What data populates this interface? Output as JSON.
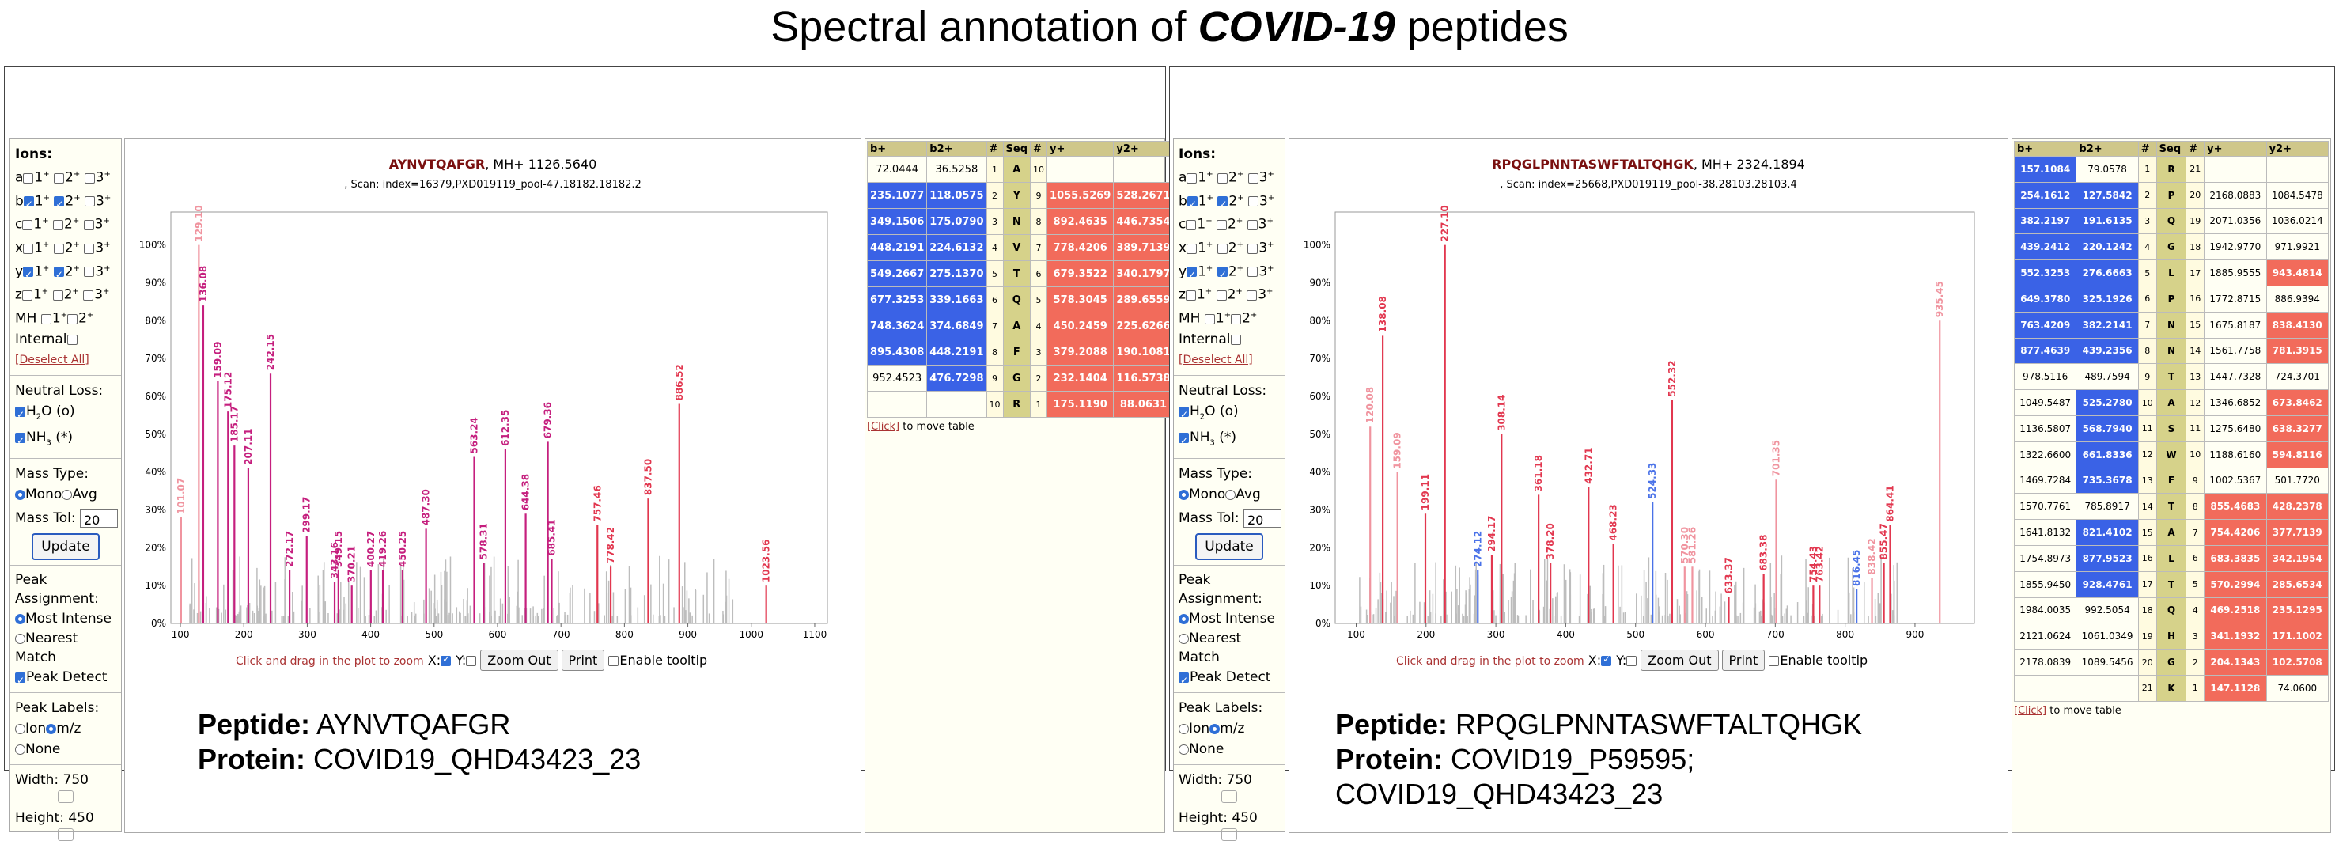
{
  "title": {
    "prefix": "Spectral annotation of ",
    "emph": "COVID-19",
    "suffix": " peptides"
  },
  "controls": {
    "ions_label": "Ions:",
    "ion_rows": [
      {
        "ion": "a",
        "c1": false,
        "c2": false,
        "c3": false
      },
      {
        "ion": "b",
        "c1": true,
        "c2": true,
        "c3": false
      },
      {
        "ion": "c",
        "c1": false,
        "c2": false,
        "c3": false
      },
      {
        "ion": "x",
        "c1": false,
        "c2": false,
        "c3": false
      },
      {
        "ion": "y",
        "c1": true,
        "c2": true,
        "c3": false
      },
      {
        "ion": "z",
        "c1": false,
        "c2": false,
        "c3": false
      }
    ],
    "charge1": "1",
    "charge2": "2",
    "charge3": "3",
    "plus": "+",
    "mh": "MH",
    "internal": "Internal",
    "deselect": "[Deselect All]",
    "neutral_loss": "Neutral Loss:",
    "h2o": "H",
    "h2o_sub": "2",
    "h2o_rest": "O (o)",
    "nh3": "NH",
    "nh3_sub": "3",
    "nh3_rest": " (*)",
    "mass_type": "Mass Type:",
    "mono": "Mono",
    "avg": "Avg",
    "mass_tol": "Mass Tol:",
    "mass_tol_value": "20",
    "update": "Update",
    "peak_assignment": "Peak Assignment:",
    "most_intense": "Most Intense",
    "nearest_match": "Nearest Match",
    "peak_detect": "Peak Detect",
    "peak_labels": "Peak Labels:",
    "ion": "Ion",
    "mz": "m/z",
    "none": "None",
    "width": "Width: 750",
    "height": "Height: 450"
  },
  "panels": [
    {
      "peptide": "AYNVTQAFGR",
      "mh": ", MH+ 1126.5640",
      "scan": ", Scan: index=16379,PXD019119_pool-47.18182.18182.2",
      "xticks": [
        "100",
        "200",
        "300",
        "400",
        "500",
        "600",
        "700",
        "800",
        "900",
        "1000",
        "1100"
      ],
      "yticks": [
        "100%",
        "90%",
        "80%",
        "70%",
        "60%",
        "50%",
        "40%",
        "30%",
        "20%",
        "10%",
        "0%"
      ],
      "toolbar": {
        "hint": "Click and drag in the plot to zoom",
        "x": "X:",
        "y": "Y:",
        "zoom": "Zoom Out",
        "print": "Print",
        "tooltip": "Enable tooltip"
      },
      "info": {
        "pep_label": "Peptide:",
        "pep": "AYNVTQAFGR",
        "prot_label": "Protein:",
        "prot": "COVID19_QHD43423_23"
      },
      "table": {
        "headers": [
          "b+",
          "b2+",
          "#",
          "Seq",
          "#",
          "y+",
          "y2+"
        ],
        "rows": [
          [
            "72.0444",
            "36.5258",
            "1",
            "A",
            "10",
            "",
            ""
          ],
          [
            "235.1077",
            "118.0575",
            "2",
            "Y",
            "9",
            "1055.5269",
            "528.2671"
          ],
          [
            "349.1506",
            "175.0790",
            "3",
            "N",
            "8",
            "892.4635",
            "446.7354"
          ],
          [
            "448.2191",
            "224.6132",
            "4",
            "V",
            "7",
            "778.4206",
            "389.7139"
          ],
          [
            "549.2667",
            "275.1370",
            "5",
            "T",
            "6",
            "679.3522",
            "340.1797"
          ],
          [
            "677.3253",
            "339.1663",
            "6",
            "Q",
            "5",
            "578.3045",
            "289.6559"
          ],
          [
            "748.3624",
            "374.6849",
            "7",
            "A",
            "4",
            "450.2459",
            "225.6266"
          ],
          [
            "895.4308",
            "448.2191",
            "8",
            "F",
            "3",
            "379.2088",
            "190.1081"
          ],
          [
            "952.4523",
            "476.7298",
            "9",
            "G",
            "2",
            "232.1404",
            "116.5738"
          ],
          [
            "",
            "",
            "10",
            "R",
            "1",
            "175.1190",
            "88.0631"
          ]
        ],
        "hits": [
          [
            0,
            0,
            0,
            0
          ],
          [
            1,
            1,
            1,
            1
          ],
          [
            1,
            1,
            1,
            1
          ],
          [
            1,
            1,
            1,
            1
          ],
          [
            1,
            1,
            1,
            1
          ],
          [
            1,
            1,
            1,
            1
          ],
          [
            1,
            1,
            1,
            1
          ],
          [
            1,
            1,
            1,
            1
          ],
          [
            0,
            1,
            1,
            1
          ],
          [
            0,
            0,
            1,
            1
          ]
        ],
        "click": "[Click]",
        "click_rest": " to move table"
      },
      "peaks": [
        {
          "mz": 101.07,
          "i": 28,
          "c": "s",
          "label": "101.07"
        },
        {
          "mz": 129.1,
          "i": 100,
          "c": "s",
          "label": "129.10"
        },
        {
          "mz": 136.08,
          "i": 84,
          "c": "b",
          "label": "136.08"
        },
        {
          "mz": 159.09,
          "i": 64,
          "c": "m",
          "label": "159.09"
        },
        {
          "mz": 175.12,
          "i": 56,
          "c": "m",
          "label": "175.12"
        },
        {
          "mz": 185.17,
          "i": 47,
          "c": "m",
          "label": "185.17"
        },
        {
          "mz": 207.11,
          "i": 41,
          "c": "m",
          "label": "207.11"
        },
        {
          "mz": 242.15,
          "i": 66,
          "c": "m",
          "label": "242.15"
        },
        {
          "mz": 272.17,
          "i": 14,
          "c": "m",
          "label": "272.17"
        },
        {
          "mz": 299.17,
          "i": 23,
          "c": "m",
          "label": "299.17"
        },
        {
          "mz": 343.16,
          "i": 11,
          "c": "m",
          "label": "343.16"
        },
        {
          "mz": 349.15,
          "i": 14,
          "c": "m",
          "label": "349.15"
        },
        {
          "mz": 370.21,
          "i": 10,
          "c": "m",
          "label": "370.21"
        },
        {
          "mz": 400.27,
          "i": 14,
          "c": "m",
          "label": "400.27"
        },
        {
          "mz": 419.26,
          "i": 14,
          "c": "m",
          "label": "419.26"
        },
        {
          "mz": 450.25,
          "i": 14,
          "c": "m",
          "label": "450.25"
        },
        {
          "mz": 487.3,
          "i": 25,
          "c": "m",
          "label": "487.30"
        },
        {
          "mz": 563.24,
          "i": 44,
          "c": "m",
          "label": "563.24"
        },
        {
          "mz": 578.31,
          "i": 16,
          "c": "m",
          "label": "578.31"
        },
        {
          "mz": 612.35,
          "i": 46,
          "c": "m",
          "label": "612.35"
        },
        {
          "mz": 644.38,
          "i": 29,
          "c": "m",
          "label": "644.38"
        },
        {
          "mz": 679.36,
          "i": 48,
          "c": "m",
          "label": "679.36"
        },
        {
          "mz": 685.41,
          "i": 17,
          "c": "m",
          "label": "685.41"
        },
        {
          "mz": 757.46,
          "i": 26,
          "c": "r",
          "label": "757.46"
        },
        {
          "mz": 778.42,
          "i": 15,
          "c": "r",
          "label": "778.42"
        },
        {
          "mz": 837.5,
          "i": 33,
          "c": "r",
          "label": "837.50"
        },
        {
          "mz": 886.52,
          "i": 58,
          "c": "r",
          "label": "886.52"
        },
        {
          "mz": 1023.56,
          "i": 10,
          "c": "r",
          "label": "1023.56"
        }
      ],
      "xrange": [
        85,
        1120
      ]
    },
    {
      "peptide": "RPQGLPNNTASWFTALTQHGK",
      "mh": ", MH+ 2324.1894",
      "scan": ", Scan: index=25668,PXD019119_pool-38.28103.28103.4",
      "xticks": [
        "100",
        "200",
        "300",
        "400",
        "500",
        "600",
        "700",
        "800",
        "900"
      ],
      "yticks": [
        "100%",
        "90%",
        "80%",
        "70%",
        "60%",
        "50%",
        "40%",
        "30%",
        "20%",
        "10%",
        "0%"
      ],
      "toolbar": {
        "hint": "Click and drag in the plot to zoom",
        "x": "X:",
        "y": "Y:",
        "zoom": "Zoom Out",
        "print": "Print",
        "tooltip": "Enable tooltip"
      },
      "info": {
        "pep_label": "Peptide:",
        "pep": "RPQGLPNNTASWFTALTQHGK",
        "prot_label": "Protein:",
        "prot": "COVID19_P59595; COVID19_QHD43423_23"
      },
      "table": {
        "headers": [
          "b+",
          "b2+",
          "#",
          "Seq",
          "#",
          "y+",
          "y2+"
        ],
        "rows": [
          [
            "157.1084",
            "79.0578",
            "1",
            "R",
            "21",
            "",
            ""
          ],
          [
            "254.1612",
            "127.5842",
            "2",
            "P",
            "20",
            "2168.0883",
            "1084.5478"
          ],
          [
            "382.2197",
            "191.6135",
            "3",
            "Q",
            "19",
            "2071.0356",
            "1036.0214"
          ],
          [
            "439.2412",
            "220.1242",
            "4",
            "G",
            "18",
            "1942.9770",
            "971.9921"
          ],
          [
            "552.3253",
            "276.6663",
            "5",
            "L",
            "17",
            "1885.9555",
            "943.4814"
          ],
          [
            "649.3780",
            "325.1926",
            "6",
            "P",
            "16",
            "1772.8715",
            "886.9394"
          ],
          [
            "763.4209",
            "382.2141",
            "7",
            "N",
            "15",
            "1675.8187",
            "838.4130"
          ],
          [
            "877.4639",
            "439.2356",
            "8",
            "N",
            "14",
            "1561.7758",
            "781.3915"
          ],
          [
            "978.5116",
            "489.7594",
            "9",
            "T",
            "13",
            "1447.7328",
            "724.3701"
          ],
          [
            "1049.5487",
            "525.2780",
            "10",
            "A",
            "12",
            "1346.6852",
            "673.8462"
          ],
          [
            "1136.5807",
            "568.7940",
            "11",
            "S",
            "11",
            "1275.6480",
            "638.3277"
          ],
          [
            "1322.6600",
            "661.8336",
            "12",
            "W",
            "10",
            "1188.6160",
            "594.8116"
          ],
          [
            "1469.7284",
            "735.3678",
            "13",
            "F",
            "9",
            "1002.5367",
            "501.7720"
          ],
          [
            "1570.7761",
            "785.8917",
            "14",
            "T",
            "8",
            "855.4683",
            "428.2378"
          ],
          [
            "1641.8132",
            "821.4102",
            "15",
            "A",
            "7",
            "754.4206",
            "377.7139"
          ],
          [
            "1754.8973",
            "877.9523",
            "16",
            "L",
            "6",
            "683.3835",
            "342.1954"
          ],
          [
            "1855.9450",
            "928.4761",
            "17",
            "T",
            "5",
            "570.2994",
            "285.6534"
          ],
          [
            "1984.0035",
            "992.5054",
            "18",
            "Q",
            "4",
            "469.2518",
            "235.1295"
          ],
          [
            "2121.0624",
            "1061.0349",
            "19",
            "H",
            "3",
            "341.1932",
            "171.1002"
          ],
          [
            "2178.0839",
            "1089.5456",
            "20",
            "G",
            "2",
            "204.1343",
            "102.5708"
          ],
          [
            "",
            "",
            "21",
            "K",
            "1",
            "147.1128",
            "74.0600"
          ]
        ],
        "hits": [
          [
            1,
            0,
            0,
            0
          ],
          [
            1,
            1,
            0,
            0
          ],
          [
            1,
            1,
            0,
            0
          ],
          [
            1,
            1,
            0,
            0
          ],
          [
            1,
            1,
            0,
            1
          ],
          [
            1,
            1,
            0,
            0
          ],
          [
            1,
            1,
            0,
            1
          ],
          [
            1,
            1,
            0,
            1
          ],
          [
            0,
            0,
            0,
            0
          ],
          [
            0,
            1,
            0,
            1
          ],
          [
            0,
            1,
            0,
            1
          ],
          [
            0,
            1,
            0,
            1
          ],
          [
            0,
            1,
            0,
            0
          ],
          [
            0,
            0,
            1,
            1
          ],
          [
            0,
            1,
            1,
            1
          ],
          [
            0,
            1,
            1,
            1
          ],
          [
            0,
            1,
            1,
            1
          ],
          [
            0,
            0,
            1,
            1
          ],
          [
            0,
            0,
            1,
            1
          ],
          [
            0,
            0,
            1,
            1
          ],
          [
            0,
            0,
            1,
            0
          ]
        ],
        "click": "[Click]",
        "click_rest": " to move table"
      },
      "peaks": [
        {
          "mz": 120.08,
          "i": 52,
          "c": "s",
          "label": "120.08"
        },
        {
          "mz": 138.08,
          "i": 76,
          "c": "r",
          "label": "138.08"
        },
        {
          "mz": 159.09,
          "i": 40,
          "c": "s",
          "label": "159.09"
        },
        {
          "mz": 199.11,
          "i": 29,
          "c": "r",
          "label": "199.11"
        },
        {
          "mz": 227.1,
          "i": 100,
          "c": "r",
          "label": "227.10"
        },
        {
          "mz": 274.12,
          "i": 14,
          "c": "bl",
          "label": "274.12"
        },
        {
          "mz": 294.17,
          "i": 18,
          "c": "r",
          "label": "294.17"
        },
        {
          "mz": 308.14,
          "i": 50,
          "c": "r",
          "label": "308.14"
        },
        {
          "mz": 361.18,
          "i": 34,
          "c": "r",
          "label": "361.18"
        },
        {
          "mz": 378.2,
          "i": 16,
          "c": "r",
          "label": "378.20"
        },
        {
          "mz": 432.71,
          "i": 36,
          "c": "r",
          "label": "432.71"
        },
        {
          "mz": 468.23,
          "i": 21,
          "c": "r",
          "label": "468.23"
        },
        {
          "mz": 524.33,
          "i": 32,
          "c": "bl",
          "label": "524.33"
        },
        {
          "mz": 552.32,
          "i": 59,
          "c": "r",
          "label": "552.32"
        },
        {
          "mz": 570.3,
          "i": 15,
          "c": "s",
          "label": "570.30"
        },
        {
          "mz": 581.26,
          "i": 15,
          "c": "s",
          "label": "581.26"
        },
        {
          "mz": 633.37,
          "i": 7,
          "c": "r",
          "label": "633.37"
        },
        {
          "mz": 683.38,
          "i": 13,
          "c": "r",
          "label": "683.38"
        },
        {
          "mz": 701.35,
          "i": 38,
          "c": "s",
          "label": "701.35"
        },
        {
          "mz": 754.43,
          "i": 10,
          "c": "r",
          "label": "754.43"
        },
        {
          "mz": 763.42,
          "i": 10,
          "c": "r",
          "label": "763.42"
        },
        {
          "mz": 816.45,
          "i": 9,
          "c": "bl",
          "label": "816.45"
        },
        {
          "mz": 838.42,
          "i": 12,
          "c": "s",
          "label": "838.42"
        },
        {
          "mz": 855.47,
          "i": 16,
          "c": "r",
          "label": "855.47"
        },
        {
          "mz": 864.41,
          "i": 26,
          "c": "r",
          "label": "864.41"
        },
        {
          "mz": 935.45,
          "i": 80,
          "c": "s",
          "label": "935.45"
        }
      ],
      "xrange": [
        70,
        985
      ]
    }
  ],
  "colors": {
    "b_hit": "#3a62e6",
    "y_hit": "#f26b5b",
    "peak_b": "#c51f7e",
    "peak_y": "#e2374f",
    "peak_soft": "#f0949f",
    "peak_blue": "#4a72e8",
    "peak_grey": "#bdbdbd",
    "seq": "#d6d28a"
  }
}
